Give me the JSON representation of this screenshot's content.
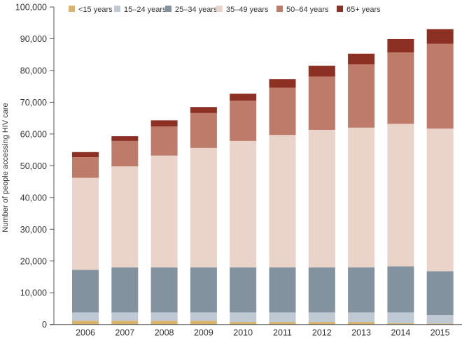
{
  "chart_data": {
    "type": "bar",
    "stacked": true,
    "title": "",
    "xlabel": "",
    "ylabel": "Number of people accessing HIV care",
    "ylim": [
      0,
      100000
    ],
    "yticks": [
      0,
      10000,
      20000,
      30000,
      40000,
      50000,
      60000,
      70000,
      80000,
      90000,
      100000
    ],
    "ytick_labels": [
      "0",
      "10,000",
      "20,000",
      "30,000",
      "40,000",
      "50,000",
      "60,000",
      "70,000",
      "80,000",
      "90,000",
      "100,000"
    ],
    "grid": false,
    "legend_position": "top",
    "categories": [
      "2006",
      "2007",
      "2008",
      "2009",
      "2010",
      "2011",
      "2012",
      "2013",
      "2014",
      "2015"
    ],
    "series": [
      {
        "name": "<15 years",
        "color": "#d9b36a",
        "values": [
          1200,
          1200,
          1200,
          1200,
          800,
          800,
          800,
          800,
          400,
          300
        ]
      },
      {
        "name": "15–24 years",
        "color": "#bfc9d3",
        "values": [
          2600,
          2600,
          2600,
          2600,
          3000,
          3000,
          3000,
          3000,
          3400,
          2700
        ]
      },
      {
        "name": "25–34 years",
        "color": "#82939f",
        "values": [
          13400,
          14200,
          14200,
          14200,
          14200,
          14200,
          14200,
          14200,
          14500,
          13800
        ]
      },
      {
        "name": "35–49 years",
        "color": "#ead3c9",
        "values": [
          29000,
          31800,
          35200,
          37600,
          39800,
          41700,
          43300,
          44000,
          44900,
          44900
        ]
      },
      {
        "name": "50–64 years",
        "color": "#bf7b6a",
        "values": [
          6500,
          8000,
          9200,
          11000,
          12700,
          14900,
          16800,
          19900,
          22500,
          26700
        ]
      },
      {
        "name": "65+ years",
        "color": "#8c3024",
        "values": [
          1600,
          1500,
          1900,
          1900,
          2200,
          2700,
          3400,
          3400,
          4200,
          4600
        ]
      }
    ]
  },
  "colors": {
    "axis": "#555555",
    "text": "#333333"
  }
}
